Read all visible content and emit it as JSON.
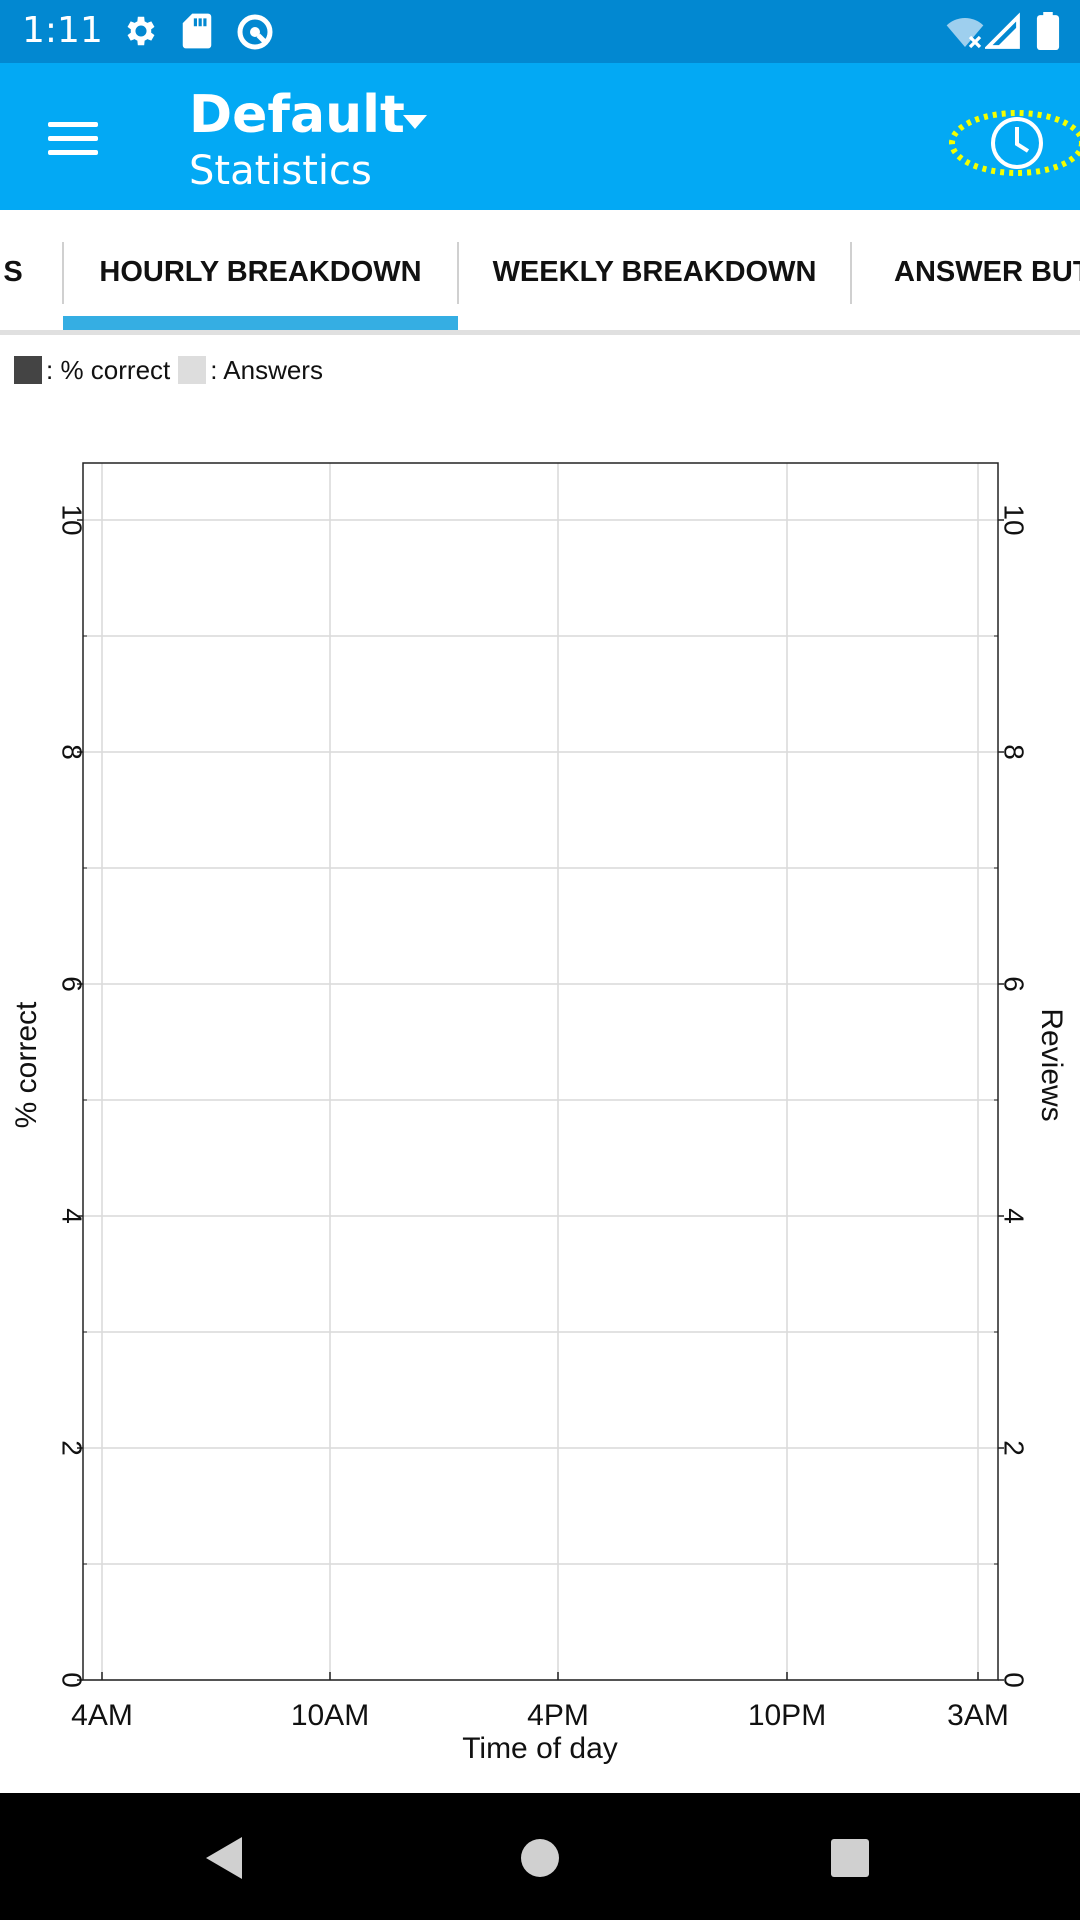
{
  "status_bar": {
    "time": "1:11",
    "icons": [
      "gear-icon",
      "sd-card-icon",
      "vpn-key-icon",
      "wifi-off-icon",
      "signal-icon",
      "battery-icon"
    ]
  },
  "app_bar": {
    "title": "Default",
    "subtitle": "Statistics",
    "icons": [
      "hamburger-menu-icon",
      "dropdown-arrow-icon",
      "clock-icon"
    ],
    "clock_highlight_color": "#f4ff00"
  },
  "tabs": [
    {
      "label": "S"
    },
    {
      "label": "HOURLY BREAKDOWN",
      "selected": true
    },
    {
      "label": "WEEKLY BREAKDOWN"
    },
    {
      "label": "ANSWER BUT"
    }
  ],
  "legend": {
    "correct_label": ": % correct",
    "answers_label": ": Answers",
    "correct_color": "#444444",
    "answers_color": "#dddddd"
  },
  "chart_data": {
    "type": "bar",
    "xlabel": "Time of day",
    "ylabel_left": "% correct",
    "ylabel_right": "Reviews",
    "x_tick_labels": [
      "4AM",
      "10AM",
      "4PM",
      "10PM",
      "3AM"
    ],
    "y_tick_labels": [
      "0",
      "2",
      "4",
      "6",
      "8",
      "10"
    ],
    "ylim": [
      0,
      10
    ],
    "grid": true,
    "series": []
  },
  "nav_bar": {
    "icons": [
      "back-icon",
      "home-icon",
      "recents-icon"
    ]
  },
  "colors": {
    "status_bar": "#0288d1",
    "app_bar": "#03a9f4",
    "tab_indicator": "#35aee3"
  }
}
